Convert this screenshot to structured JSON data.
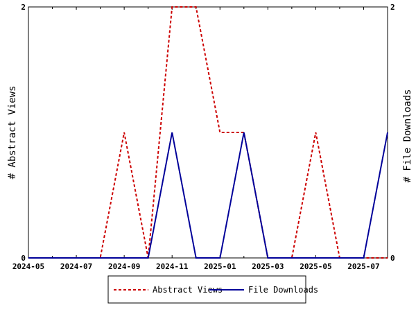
{
  "chart_data": {
    "type": "line",
    "x": [
      "2024-05",
      "2024-06",
      "2024-07",
      "2024-08",
      "2024-09",
      "2024-10",
      "2024-11",
      "2024-12",
      "2025-01",
      "2025-02",
      "2025-03",
      "2025-04",
      "2025-05",
      "2025-06",
      "2025-07",
      "2025-08"
    ],
    "x_tick_labels": [
      "2024-05",
      "2024-07",
      "2024-09",
      "2024-11",
      "2025-01",
      "2025-03",
      "2025-05",
      "2025-07"
    ],
    "series": [
      {
        "name": "Abstract Views",
        "axis": "left",
        "color": "#cc0000",
        "dash": "dashed",
        "values": [
          0,
          0,
          0,
          0,
          1,
          0,
          2,
          2,
          1,
          1,
          0,
          0,
          1,
          0,
          0,
          0
        ]
      },
      {
        "name": "File Downloads",
        "axis": "right",
        "color": "#000099",
        "dash": "solid",
        "values": [
          0,
          0,
          0,
          0,
          0,
          0,
          1,
          0,
          0,
          1,
          0,
          0,
          0,
          0,
          0,
          1
        ]
      }
    ],
    "ylabel_left": "# Abstract Views",
    "ylabel_right": "# File Downloads",
    "ylim_left": [
      0,
      2
    ],
    "ylim_right": [
      0,
      2
    ],
    "y_tick_labels_left": [
      "0",
      "2"
    ],
    "y_tick_labels_right": [
      "0",
      "2"
    ],
    "grid": false,
    "legend_position": "bottom"
  }
}
